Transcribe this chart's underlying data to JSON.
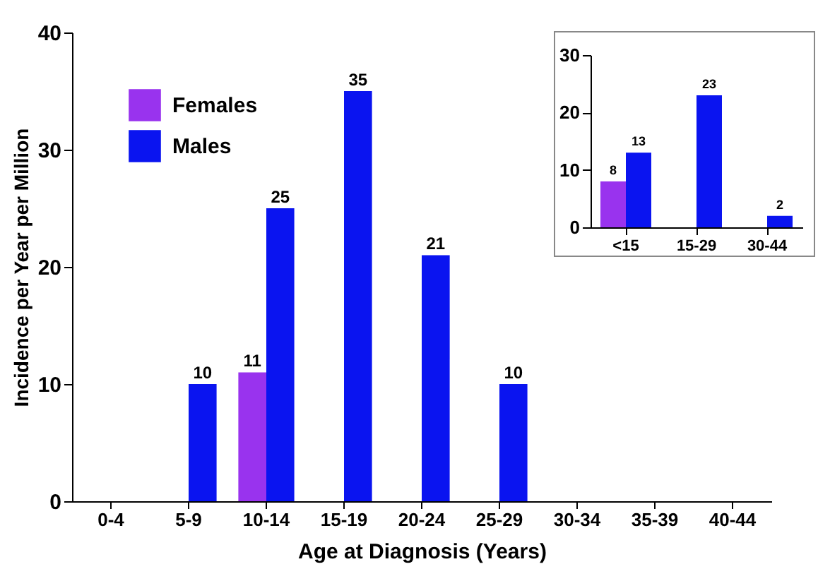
{
  "chart_data": [
    {
      "type": "bar",
      "xlabel": "Age at Diagnosis (Years)",
      "ylabel": "Incidence per Year per Million",
      "categories": [
        "0-4",
        "5-9",
        "10-14",
        "15-19",
        "20-24",
        "25-29",
        "30-34",
        "35-39",
        "40-44"
      ],
      "series": [
        {
          "name": "Females",
          "color": "#9933ee",
          "values": [
            null,
            null,
            11,
            null,
            null,
            null,
            null,
            null,
            null
          ]
        },
        {
          "name": "Males",
          "color": "#0a14f0",
          "values": [
            null,
            10,
            25,
            35,
            21,
            10,
            null,
            null,
            null
          ]
        }
      ],
      "ylim": [
        0,
        40
      ],
      "yticks": [
        0,
        10,
        20,
        30,
        40
      ],
      "data_labels": true,
      "legend": "top left",
      "grid": false
    },
    {
      "type": "bar",
      "categories": [
        "<15",
        "15-29",
        "30-44"
      ],
      "series": [
        {
          "color": "#9933ee",
          "values": [
            8,
            null,
            null
          ]
        },
        {
          "color": "#0a14f0",
          "values": [
            13,
            23,
            2
          ]
        }
      ],
      "ylim": [
        0,
        30
      ],
      "yticks": [
        0,
        10,
        20,
        30
      ],
      "data_labels": true,
      "legend": false,
      "grid": false
    }
  ]
}
